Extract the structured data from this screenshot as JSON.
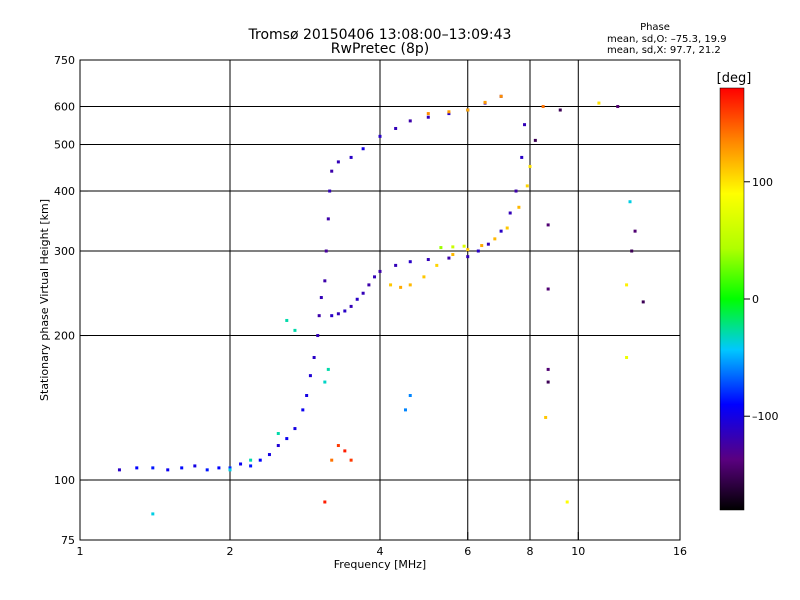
{
  "header": {
    "title_line1": "Tromsø 20150406 13:08:00–13:09:43",
    "title_line2": "RwPretec (8p)"
  },
  "phase_info": {
    "title": "Phase",
    "o_stats": "mean, sd,O: –75.3, 19.9",
    "x_stats": "mean, sd,X:  97.7, 21.2"
  },
  "chart_data": {
    "type": "scatter",
    "xlabel": "Frequency [MHz]",
    "ylabel": "Stationary phase Virtual Height [km]",
    "xscale": "log",
    "yscale": "log",
    "xlim": [
      1,
      16
    ],
    "ylim": [
      75,
      750
    ],
    "x_ticks": [
      1,
      2,
      4,
      6,
      8,
      10,
      16
    ],
    "x_tick_labels": [
      "1",
      "2",
      "4",
      "6",
      "8",
      "10",
      "16"
    ],
    "y_ticks": [
      75,
      100,
      200,
      300,
      400,
      500,
      600,
      750
    ],
    "y_tick_labels": [
      "75",
      "100",
      "200",
      "300",
      "400",
      "500",
      "600",
      "750"
    ],
    "grid_x": [
      2,
      4,
      6,
      8,
      10
    ],
    "grid_y": [
      100,
      200,
      300,
      400,
      500,
      600
    ],
    "colorbar": {
      "label": "[deg]",
      "range": [
        -180,
        180
      ],
      "ticks": [
        -100,
        0,
        100
      ],
      "tick_labels": [
        "–100",
        "0",
        "100"
      ]
    },
    "series": [
      {
        "points": [
          [
            1.2,
            105,
            -110
          ],
          [
            1.3,
            106,
            -90
          ],
          [
            1.4,
            106,
            -85
          ],
          [
            1.5,
            105,
            -95
          ],
          [
            1.6,
            106,
            -88
          ],
          [
            1.7,
            107,
            -100
          ],
          [
            1.8,
            105,
            -85
          ],
          [
            1.9,
            106,
            -90
          ],
          [
            2.0,
            106,
            -80
          ],
          [
            2.1,
            108,
            -95
          ],
          [
            2.2,
            107,
            -85
          ],
          [
            2.3,
            110,
            -90
          ],
          [
            2.4,
            113,
            -100
          ],
          [
            2.5,
            118,
            -105
          ],
          [
            2.6,
            122,
            -95
          ],
          [
            2.7,
            128,
            -100
          ],
          [
            2.8,
            140,
            -95
          ],
          [
            2.85,
            150,
            -100
          ],
          [
            2.9,
            165,
            -105
          ],
          [
            2.95,
            180,
            -110
          ],
          [
            3.0,
            200,
            -115
          ],
          [
            3.02,
            220,
            -120
          ],
          [
            3.05,
            240,
            -115
          ],
          [
            3.1,
            260,
            -120
          ],
          [
            3.12,
            300,
            -125
          ],
          [
            3.15,
            350,
            -120
          ],
          [
            3.17,
            400,
            -115
          ],
          [
            3.2,
            440,
            -120
          ],
          [
            3.3,
            460,
            -115
          ],
          [
            3.5,
            470,
            -110
          ],
          [
            3.7,
            490,
            -100
          ],
          [
            4.0,
            520,
            -110
          ],
          [
            4.3,
            540,
            -115
          ],
          [
            4.6,
            560,
            -120
          ],
          [
            5.0,
            570,
            -115
          ],
          [
            5.5,
            580,
            -110
          ],
          [
            6.0,
            590,
            -115
          ],
          [
            6.5,
            610,
            -120
          ],
          [
            7.0,
            630,
            -110
          ]
        ]
      },
      {
        "points": [
          [
            3.2,
            220,
            -110
          ],
          [
            3.3,
            222,
            -115
          ],
          [
            3.4,
            225,
            -110
          ],
          [
            3.5,
            230,
            -115
          ],
          [
            3.6,
            238,
            -110
          ],
          [
            3.7,
            245,
            -115
          ],
          [
            3.8,
            255,
            -120
          ],
          [
            3.9,
            265,
            -115
          ],
          [
            4.0,
            272,
            -120
          ],
          [
            4.3,
            280,
            -115
          ],
          [
            4.6,
            285,
            -110
          ],
          [
            5.0,
            288,
            -115
          ],
          [
            5.5,
            290,
            -120
          ],
          [
            6.0,
            292,
            -115
          ],
          [
            6.3,
            300,
            -110
          ],
          [
            6.6,
            310,
            -115
          ],
          [
            7.0,
            330,
            -110
          ],
          [
            7.3,
            360,
            -115
          ],
          [
            7.5,
            400,
            -120
          ],
          [
            7.7,
            470,
            -110
          ],
          [
            7.8,
            550,
            -115
          ]
        ]
      },
      {
        "points": [
          [
            4.2,
            255,
            110
          ],
          [
            4.4,
            252,
            120
          ],
          [
            4.6,
            255,
            115
          ],
          [
            4.9,
            265,
            110
          ],
          [
            5.2,
            280,
            105
          ],
          [
            5.6,
            295,
            115
          ],
          [
            6.0,
            302,
            110
          ],
          [
            6.4,
            308,
            120
          ],
          [
            6.8,
            318,
            115
          ],
          [
            7.2,
            335,
            110
          ],
          [
            7.6,
            370,
            115
          ],
          [
            7.9,
            410,
            105
          ],
          [
            8.0,
            450,
            100
          ]
        ]
      },
      {
        "points": [
          [
            5.3,
            305,
            40
          ],
          [
            5.6,
            306,
            60
          ],
          [
            5.9,
            307,
            70
          ]
        ]
      },
      {
        "points": [
          [
            5.0,
            580,
            130
          ],
          [
            5.5,
            585,
            125
          ],
          [
            6.0,
            590,
            120
          ],
          [
            6.5,
            612,
            125
          ],
          [
            7.0,
            630,
            130
          ],
          [
            8.5,
            600,
            140
          ],
          [
            11.0,
            610,
            100
          ],
          [
            12.5,
            255,
            95
          ],
          [
            12.5,
            180,
            80
          ],
          [
            9.5,
            90,
            90
          ],
          [
            8.6,
            135,
            110
          ]
        ]
      },
      {
        "points": [
          [
            3.3,
            118,
            160
          ],
          [
            3.4,
            115,
            170
          ],
          [
            3.5,
            110,
            160
          ],
          [
            3.2,
            110,
            140
          ],
          [
            3.1,
            90,
            170
          ]
        ]
      },
      {
        "points": [
          [
            1.4,
            85,
            -40
          ],
          [
            2.0,
            105,
            -40
          ],
          [
            2.2,
            110,
            -30
          ],
          [
            2.5,
            125,
            -30
          ],
          [
            2.7,
            205,
            -30
          ],
          [
            2.6,
            215,
            -30
          ],
          [
            3.1,
            160,
            -35
          ],
          [
            3.15,
            170,
            -30
          ],
          [
            4.5,
            140,
            -60
          ],
          [
            4.6,
            150,
            -60
          ],
          [
            12.7,
            380,
            -40
          ]
        ]
      },
      {
        "points": [
          [
            8.7,
            340,
            -140
          ],
          [
            8.7,
            250,
            -140
          ],
          [
            8.7,
            170,
            -140
          ],
          [
            8.7,
            160,
            -150
          ],
          [
            9.2,
            590,
            -150
          ],
          [
            8.2,
            510,
            -150
          ],
          [
            12.0,
            600,
            -140
          ],
          [
            12.8,
            300,
            -150
          ],
          [
            13.0,
            330,
            -140
          ],
          [
            13.5,
            235,
            -150
          ]
        ]
      }
    ]
  }
}
